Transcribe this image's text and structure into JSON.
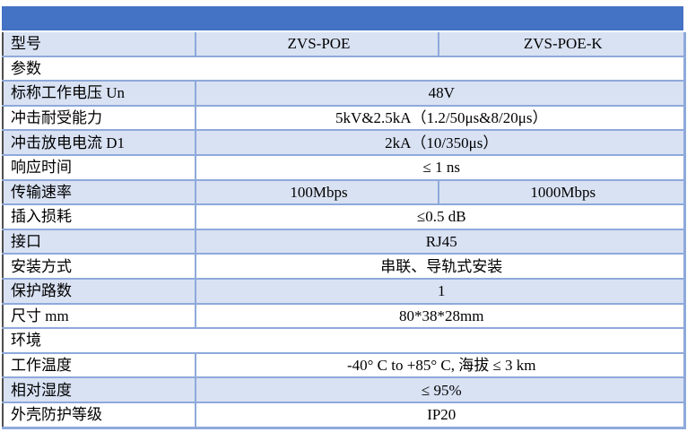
{
  "colors": {
    "title_bar": "#4472C4",
    "row_shade": "#D9E2F3",
    "grid_border": "#8EA9DB",
    "outer_left_border": "#4f4f4f"
  },
  "table": {
    "title_bar_text": "",
    "rows": [
      {
        "type": "3col",
        "shade": "blue",
        "label": "型号",
        "v1": "ZVS-POE",
        "v2": "ZVS-POE-K"
      },
      {
        "type": "section",
        "shade": "white",
        "label": "参数"
      },
      {
        "type": "2col",
        "shade": "blue",
        "label": "标称工作电压 Un",
        "value": "48V"
      },
      {
        "type": "2col",
        "shade": "white",
        "label": "冲击耐受能力",
        "value": "5kV&2.5kA（1.2/50μs&8/20μs）"
      },
      {
        "type": "2col",
        "shade": "blue",
        "label": "冲击放电电流 D1",
        "value": "2kA（10/350μs）"
      },
      {
        "type": "2col",
        "shade": "white",
        "label": "响应时间",
        "value": "≤ 1 ns"
      },
      {
        "type": "3col",
        "shade": "blue",
        "label": "传输速率",
        "v1": "100Mbps",
        "v2": "1000Mbps"
      },
      {
        "type": "2col",
        "shade": "white",
        "label": "插入损耗",
        "value": "≤0.5 dB"
      },
      {
        "type": "2col",
        "shade": "blue",
        "label": "接口",
        "value": "RJ45"
      },
      {
        "type": "2col",
        "shade": "white",
        "label": "安装方式",
        "value": "串联、导轨式安装"
      },
      {
        "type": "2col",
        "shade": "blue",
        "label": "保护路数",
        "value": "1"
      },
      {
        "type": "2col",
        "shade": "white",
        "label": "尺寸 mm",
        "value": "80*38*28mm"
      },
      {
        "type": "section",
        "shade": "white",
        "label": "环境"
      },
      {
        "type": "2col",
        "shade": "white",
        "label": "工作温度",
        "value": "-40° C to +85° C, 海拔 ≤ 3 km"
      },
      {
        "type": "2col",
        "shade": "blue",
        "label": "相对湿度",
        "value": "≤ 95%"
      },
      {
        "type": "2col",
        "shade": "white",
        "label": "外壳防护等级",
        "value": "IP20"
      }
    ]
  }
}
